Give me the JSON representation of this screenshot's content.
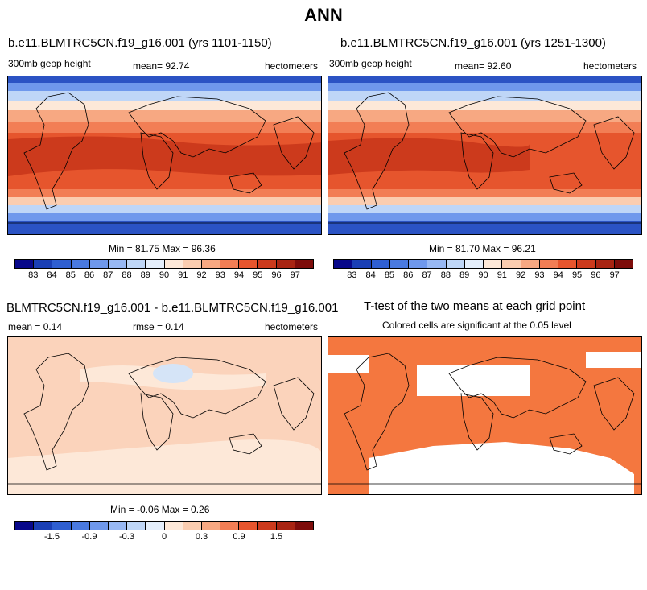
{
  "page_title": "ANN",
  "panels": {
    "p1": {
      "title": "b.e11.BLMTRC5CN.f19_g16.001 (yrs 1101-1150)",
      "left_label": "300mb geop height",
      "mean_text": "mean=  92.74",
      "units": "hectometers",
      "minmax_text": "Min =  81.75 Max =  96.36"
    },
    "p2": {
      "title": "b.e11.BLMTRC5CN.f19_g16.001 (yrs 1251-1300)",
      "left_label": "300mb geop height",
      "mean_text": "mean=  92.60",
      "units": "hectometers",
      "minmax_text": "Min =  81.70 Max =  96.21"
    },
    "p3": {
      "title": "BLMTRC5CN.f19_g16.001 - b.e11.BLMTRC5CN.f19_g16.001",
      "mean_text": "mean =   0.14",
      "rmse_text": "rmse =   0.14",
      "units": "hectometers",
      "minmax_text": "Min =  -0.06 Max =   0.26"
    },
    "p4": {
      "title": "T-test of the two means at each grid point",
      "subtitle": "Colored cells are significant at the 0.05 level"
    }
  },
  "colorbars": {
    "abs": {
      "colors": [
        "#08088a",
        "#1a3fb5",
        "#2f5fd1",
        "#4a7ae0",
        "#6f98ec",
        "#98b8f3",
        "#bfd6f7",
        "#e4eefb",
        "#fde8d8",
        "#fbcdb0",
        "#f7a882",
        "#f27e55",
        "#e6552d",
        "#cc3a1c",
        "#a82412",
        "#7d0c0a"
      ],
      "labels": [
        "83",
        "84",
        "85",
        "86",
        "87",
        "88",
        "89",
        "90",
        "91",
        "92",
        "93",
        "94",
        "95",
        "96",
        "97"
      ]
    },
    "diff": {
      "colors": [
        "#08088a",
        "#1a3fb5",
        "#2f5fd1",
        "#4a7ae0",
        "#6f98ec",
        "#98b8f3",
        "#bfd6f7",
        "#e4eefb",
        "#fde8d8",
        "#fbcdb0",
        "#f7a882",
        "#f27e55",
        "#e6552d",
        "#cc3a1c",
        "#a82412",
        "#7d0c0a"
      ],
      "labels": [
        "-1.5",
        "-0.9",
        "-0.3",
        "0",
        "0.3",
        "0.9",
        "1.5"
      ],
      "label_positions": [
        1,
        3,
        5,
        7,
        9,
        11,
        13
      ]
    }
  },
  "map_colors": {
    "deep_blue": "#2b53c4",
    "mid_blue": "#6f98ec",
    "light_blue": "#bfd6f7",
    "pale": "#fde8d8",
    "peach": "#fbcdb0",
    "salmon": "#f7a882",
    "orange": "#f27e55",
    "red_orange": "#e6552d",
    "red": "#cc3a1c",
    "dark_red": "#a82412",
    "diff_fill": "#fbd3bb",
    "diff_light": "#fde8d8",
    "diff_blue": "#d5e4f7",
    "ttest_fill": "#f4773f"
  }
}
